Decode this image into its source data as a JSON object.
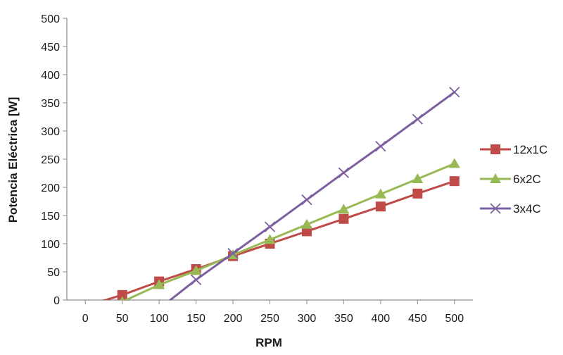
{
  "chart_data": {
    "type": "line",
    "title": "",
    "xlabel": "RPM",
    "ylabel": "Potencia Eléctrica [W]",
    "xlim": [
      -25,
      525
    ],
    "ylim": [
      0,
      500
    ],
    "x_ticks": [
      0,
      50,
      100,
      150,
      200,
      250,
      300,
      350,
      400,
      450,
      500
    ],
    "y_ticks": [
      0,
      50,
      100,
      150,
      200,
      250,
      300,
      350,
      400,
      450,
      500
    ],
    "grid": false,
    "legend_position": "right",
    "series": [
      {
        "name": "12x1C",
        "color": "#be4b48",
        "marker": "square",
        "x": [
          50,
          100,
          150,
          200,
          250,
          300,
          350,
          400,
          450,
          500
        ],
        "y": [
          9,
          33,
          55,
          78,
          100,
          122,
          144,
          166,
          189,
          211
        ],
        "trend_start": {
          "x": 17,
          "y": -4
        }
      },
      {
        "name": "6x2C",
        "color": "#98b954",
        "marker": "triangle",
        "x": [
          50,
          100,
          150,
          200,
          250,
          300,
          350,
          400,
          450,
          500
        ],
        "y": [
          -3,
          27,
          52,
          80,
          107,
          134,
          161,
          188,
          215,
          242
        ],
        "trend_start": {
          "x": 50,
          "y": -3
        }
      },
      {
        "name": "3x4C",
        "color": "#7d5fa0",
        "marker": "x",
        "x": [
          150,
          200,
          250,
          300,
          350,
          400,
          450,
          500
        ],
        "y": [
          36,
          83,
          130,
          178,
          226,
          273,
          321,
          369
        ],
        "trend_start": {
          "x": 112,
          "y": -3
        }
      }
    ]
  }
}
